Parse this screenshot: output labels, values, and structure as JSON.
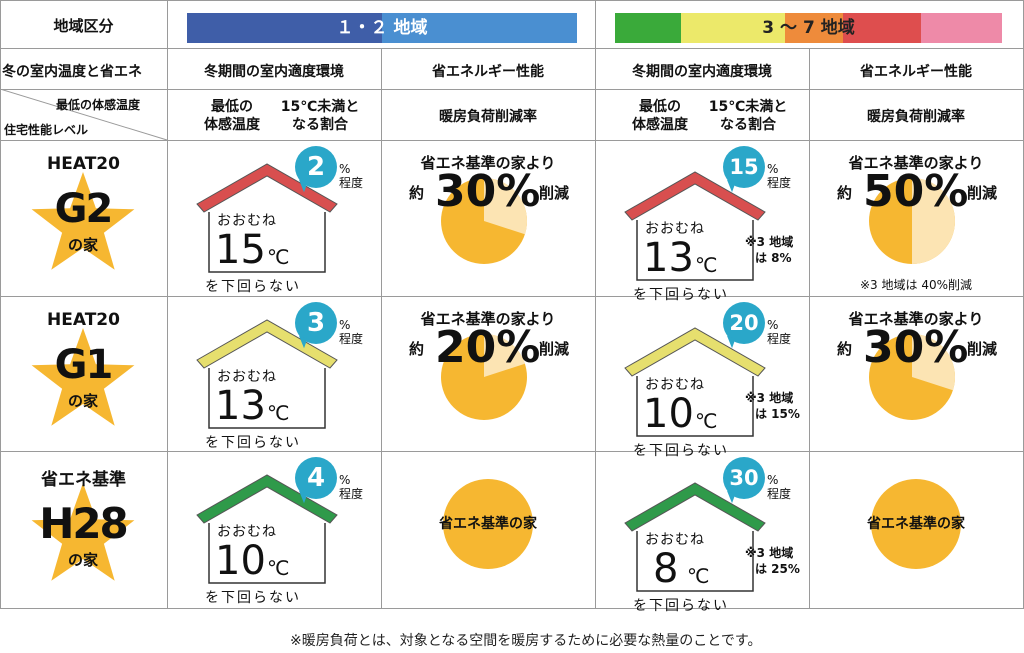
{
  "header": {
    "region_label": "地域区分",
    "region_12": "１・２ 地域",
    "region_37": "3 〜 7 地域",
    "colors": {
      "region_12_band": "#3f5ea8",
      "region_12_band_right": "#4a8fd1",
      "band_green": "#3aaa3a",
      "band_yellow": "#ece96a",
      "band_orange": "#ee8b3b",
      "band_red": "#de4e4e",
      "band_pink": "#ee8aa8"
    }
  },
  "subheader": {
    "row_title": "冬の室内温度と省エネ",
    "comfort_env": "冬期間の室内適度環境",
    "energy_perf": "省エネルギー性能",
    "comfort_env_2": "冬期間の室内適度環境",
    "energy_perf_2": "省エネルギー性能"
  },
  "axis": {
    "top_label": "最低の体感温度",
    "bottom_label": "住宅性能レベル",
    "min_temp_1": "最低の",
    "min_temp_2": "体感温度",
    "ratio_1": "15℃未満と",
    "ratio_2": "なる割合",
    "heating_reduction": "暖房負荷削減率"
  },
  "common": {
    "about": "おおむね",
    "deg_c": "℃",
    "not_below": "を下回らない",
    "percent": "%",
    "approx_degree": "程度",
    "vs_standard": "省エネ基準の家より",
    "approx": "約",
    "reduction": "削減",
    "std_house": "省エネ基準の家"
  },
  "rows": [
    {
      "top": "HEAT20",
      "code": "G2",
      "suffix": "の家",
      "roof_color": "#d84f4f",
      "left": {
        "ratio": "2",
        "temp": "15"
      },
      "right": {
        "ratio": "15",
        "temp": "13",
        "note_1": "※3 地域",
        "note_2": "は 8%"
      },
      "reduce_left": {
        "value": "30%",
        "fraction": 0.3
      },
      "reduce_right": {
        "value": "50%",
        "fraction": 0.5,
        "note": "※3 地域は 40%削減"
      }
    },
    {
      "top": "HEAT20",
      "code": "G1",
      "suffix": "の家",
      "roof_color": "#e6df6e",
      "left": {
        "ratio": "3",
        "temp": "13"
      },
      "right": {
        "ratio": "20",
        "temp": "10",
        "note_1": "※3 地域",
        "note_2": "は 15%"
      },
      "reduce_left": {
        "value": "20%",
        "fraction": 0.2
      },
      "reduce_right": {
        "value": "30%",
        "fraction": 0.3
      }
    },
    {
      "top": "省エネ基準",
      "code": "H28",
      "suffix": "の家",
      "roof_color": "#2f9a4a",
      "left": {
        "ratio": "4",
        "temp": "10"
      },
      "right": {
        "ratio": "30",
        "temp": "8",
        "note_1": "※3 地域",
        "note_2": "は 25%"
      },
      "reduce_left": {
        "value": "",
        "fraction": 0
      },
      "reduce_right": {
        "value": "",
        "fraction": 0
      }
    }
  ],
  "colors": {
    "pie_main": "#f6b731",
    "pie_light": "#fce4b3",
    "bubble": "#2aa7c9",
    "star": "#f6b731"
  },
  "footnote": "※暖房負荷とは、対象となる空間を暖房するために必要な熱量のことです。"
}
